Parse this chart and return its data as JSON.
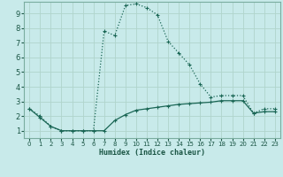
{
  "xlabel": "Humidex (Indice chaleur)",
  "background_color": "#c8eaea",
  "grid_color": "#b0d4cc",
  "line_color": "#1a6655",
  "xlim": [
    -0.5,
    23.5
  ],
  "ylim": [
    0.5,
    9.8
  ],
  "xticks": [
    0,
    1,
    2,
    3,
    4,
    5,
    6,
    7,
    8,
    9,
    10,
    11,
    12,
    13,
    14,
    15,
    16,
    17,
    18,
    19,
    20,
    21,
    22,
    23
  ],
  "yticks": [
    1,
    2,
    3,
    4,
    5,
    6,
    7,
    8,
    9
  ],
  "curve1_x": [
    0,
    1,
    2,
    3,
    4,
    5,
    6,
    7,
    8,
    9,
    10,
    11,
    12,
    13,
    14,
    15,
    16,
    17,
    18,
    19,
    20,
    21,
    22,
    23
  ],
  "curve1_y": [
    2.5,
    2.0,
    1.3,
    1.0,
    1.0,
    1.0,
    1.0,
    7.8,
    7.5,
    9.55,
    9.65,
    9.4,
    8.9,
    7.1,
    6.3,
    5.5,
    4.2,
    3.3,
    3.4,
    3.4,
    3.4,
    2.2,
    2.5,
    2.5
  ],
  "curve2_x": [
    0,
    1,
    2,
    3,
    4,
    5,
    6,
    7,
    8,
    9,
    10,
    11,
    12,
    13,
    14,
    15,
    16,
    17,
    18,
    19,
    20,
    21,
    22,
    23
  ],
  "curve2_y": [
    2.5,
    1.9,
    1.3,
    1.0,
    1.0,
    1.0,
    1.0,
    1.0,
    1.7,
    2.1,
    2.4,
    2.5,
    2.6,
    2.7,
    2.8,
    2.85,
    2.9,
    2.95,
    3.05,
    3.05,
    3.05,
    2.2,
    2.3,
    2.3
  ]
}
